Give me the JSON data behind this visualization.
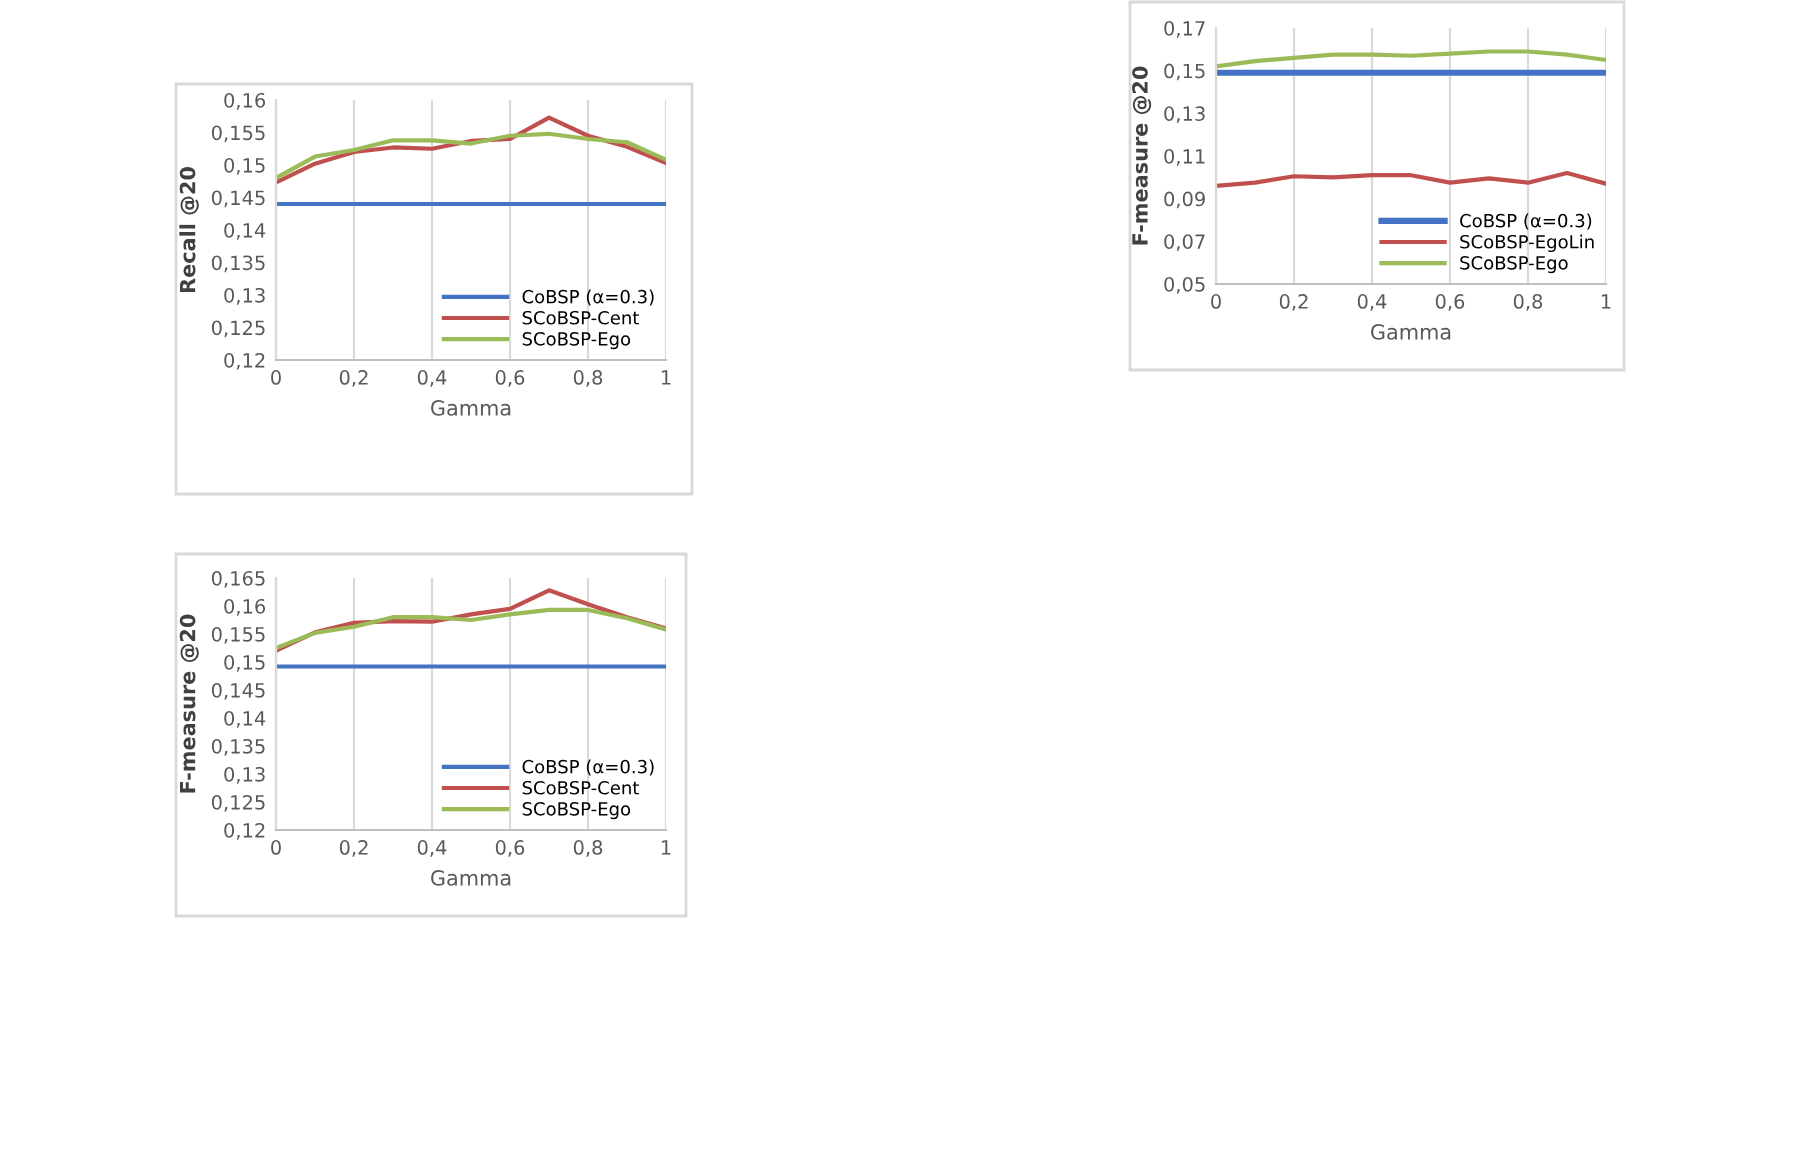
{
  "chart_data": [
    {
      "type": "line",
      "xlabel": "Gamma",
      "ylabel": "Recall @20",
      "x": [
        0,
        0.1,
        0.2,
        0.3,
        0.4,
        0.5,
        0.6,
        0.7,
        0.8,
        0.9,
        1
      ],
      "xlim": [
        0,
        1
      ],
      "xticks": [
        0,
        {
          "value": 0.2,
          "label": "0,2"
        },
        {
          "value": 0.4,
          "label": "0,4"
        },
        {
          "value": 0.6,
          "label": "0,6"
        },
        {
          "value": 0.8,
          "label": "0,8"
        },
        1
      ],
      "ylim": [
        0.12,
        0.16
      ],
      "yticks": [
        {
          "value": 0.12,
          "label": "0,12"
        },
        {
          "value": 0.125,
          "label": "0,125"
        },
        {
          "value": 0.13,
          "label": "0,13"
        },
        {
          "value": 0.135,
          "label": "0,135"
        },
        {
          "value": 0.14,
          "label": "0,14"
        },
        {
          "value": 0.145,
          "label": "0,145"
        },
        {
          "value": 0.15,
          "label": "0,15"
        },
        {
          "value": 0.155,
          "label": "0,155"
        },
        {
          "value": 0.16,
          "label": "0,16"
        }
      ],
      "grid": "x",
      "legend": "bottom right",
      "series": [
        {
          "name": "CoBSP (α=0.3)",
          "color": "#4472c4",
          "values": [
            0.144,
            0.144,
            0.144,
            0.144,
            0.144,
            0.144,
            0.144,
            0.144,
            0.144,
            0.144,
            0.144
          ]
        },
        {
          "name": "SCoBSP-Cent",
          "color": "#c0504d",
          "values": [
            0.1473,
            0.1502,
            0.152,
            0.1527,
            0.1525,
            0.1537,
            0.154,
            0.1573,
            0.1545,
            0.1528,
            0.1503
          ]
        },
        {
          "name": "SCoBSP-Ego",
          "color": "#9bbb59",
          "values": [
            0.148,
            0.1513,
            0.1523,
            0.1538,
            0.1538,
            0.1533,
            0.1545,
            0.1548,
            0.154,
            0.1535,
            0.1508
          ]
        }
      ]
    },
    {
      "type": "line",
      "xlabel": "Gamma",
      "ylabel": "F-measure @20",
      "x": [
        0,
        0.1,
        0.2,
        0.3,
        0.4,
        0.5,
        0.6,
        0.7,
        0.8,
        0.9,
        1
      ],
      "xlim": [
        0,
        1
      ],
      "xticks": [
        0,
        {
          "value": 0.2,
          "label": "0,2"
        },
        {
          "value": 0.4,
          "label": "0,4"
        },
        {
          "value": 0.6,
          "label": "0,6"
        },
        {
          "value": 0.8,
          "label": "0,8"
        },
        1
      ],
      "ylim": [
        0.05,
        0.17
      ],
      "yticks": [
        {
          "value": 0.05,
          "label": "0,05"
        },
        {
          "value": 0.07,
          "label": "0,07"
        },
        {
          "value": 0.09,
          "label": "0,09"
        },
        {
          "value": 0.11,
          "label": "0,11"
        },
        {
          "value": 0.13,
          "label": "0,13"
        },
        {
          "value": 0.15,
          "label": "0,15"
        },
        {
          "value": 0.17,
          "label": "0,17"
        }
      ],
      "grid": "x",
      "legend": "bottom right",
      "series": [
        {
          "name": "CoBSP (α=0.3)",
          "color": "#4472c4",
          "values": [
            0.149,
            0.149,
            0.149,
            0.149,
            0.149,
            0.149,
            0.149,
            0.149,
            0.149,
            0.149,
            0.149
          ]
        },
        {
          "name": "SCoBSP-EgoLin",
          "color": "#c0504d",
          "values": [
            0.096,
            0.0975,
            0.1005,
            0.1,
            0.101,
            0.101,
            0.0975,
            0.0995,
            0.0975,
            0.102,
            0.097
          ]
        },
        {
          "name": "SCoBSP-Ego",
          "color": "#9bbb59",
          "values": [
            0.152,
            0.1545,
            0.156,
            0.1575,
            0.1575,
            0.157,
            0.158,
            0.159,
            0.159,
            0.1575,
            0.155
          ]
        }
      ]
    },
    {
      "type": "line",
      "xlabel": "Gamma",
      "ylabel": "F-measure @20",
      "x": [
        0,
        0.1,
        0.2,
        0.3,
        0.4,
        0.5,
        0.6,
        0.7,
        0.8,
        0.9,
        1
      ],
      "xlim": [
        0,
        1
      ],
      "xticks": [
        0,
        {
          "value": 0.2,
          "label": "0,2"
        },
        {
          "value": 0.4,
          "label": "0,4"
        },
        {
          "value": 0.6,
          "label": "0,6"
        },
        {
          "value": 0.8,
          "label": "0,8"
        },
        1
      ],
      "ylim": [
        0.12,
        0.165
      ],
      "yticks": [
        {
          "value": 0.12,
          "label": "0,12"
        },
        {
          "value": 0.125,
          "label": "0,125"
        },
        {
          "value": 0.13,
          "label": "0,13"
        },
        {
          "value": 0.135,
          "label": "0,135"
        },
        {
          "value": 0.14,
          "label": "0,14"
        },
        {
          "value": 0.145,
          "label": "0,145"
        },
        {
          "value": 0.15,
          "label": "0,15"
        },
        {
          "value": 0.155,
          "label": "0,155"
        },
        {
          "value": 0.16,
          "label": "0,16"
        },
        {
          "value": 0.165,
          "label": "0,165"
        }
      ],
      "grid": "x",
      "legend": "bottom right",
      "series": [
        {
          "name": "CoBSP (α=0.3)",
          "color": "#4472c4",
          "values": [
            0.1492,
            0.1492,
            0.1492,
            0.1492,
            0.1492,
            0.1492,
            0.1492,
            0.1492,
            0.1492,
            0.1492,
            0.1492
          ]
        },
        {
          "name": "SCoBSP-Cent",
          "color": "#c0504d",
          "values": [
            0.152,
            0.1553,
            0.157,
            0.1573,
            0.1572,
            0.1585,
            0.1595,
            0.1628,
            0.1603,
            0.158,
            0.156
          ]
        },
        {
          "name": "SCoBSP-Ego",
          "color": "#9bbb59",
          "values": [
            0.1525,
            0.1552,
            0.1563,
            0.158,
            0.158,
            0.1575,
            0.1585,
            0.1593,
            0.1593,
            0.1578,
            0.1558
          ]
        }
      ]
    }
  ]
}
